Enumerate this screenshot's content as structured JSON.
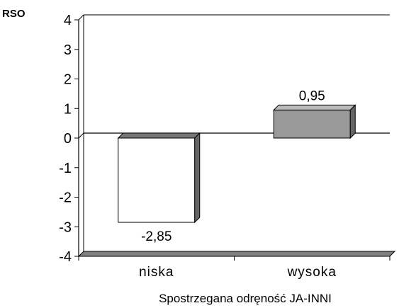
{
  "chart_data": {
    "type": "bar",
    "title": "",
    "ylabel": "RSO",
    "xlabel": "Spostrzegana odręność JA-INNI",
    "categories": [
      "niska",
      "wysoka"
    ],
    "series": [
      {
        "values": [
          -2.85,
          0.95
        ],
        "data_labels": [
          "-2,85",
          "0,95"
        ]
      }
    ],
    "bar_colors": [
      "#ffffff",
      "#999999"
    ],
    "ylim": [
      -4,
      4
    ],
    "yticks": [
      4,
      3,
      2,
      1,
      0,
      -1,
      -2,
      -3,
      -4
    ],
    "grid": false,
    "legend": "none",
    "style": "3d-bars"
  }
}
